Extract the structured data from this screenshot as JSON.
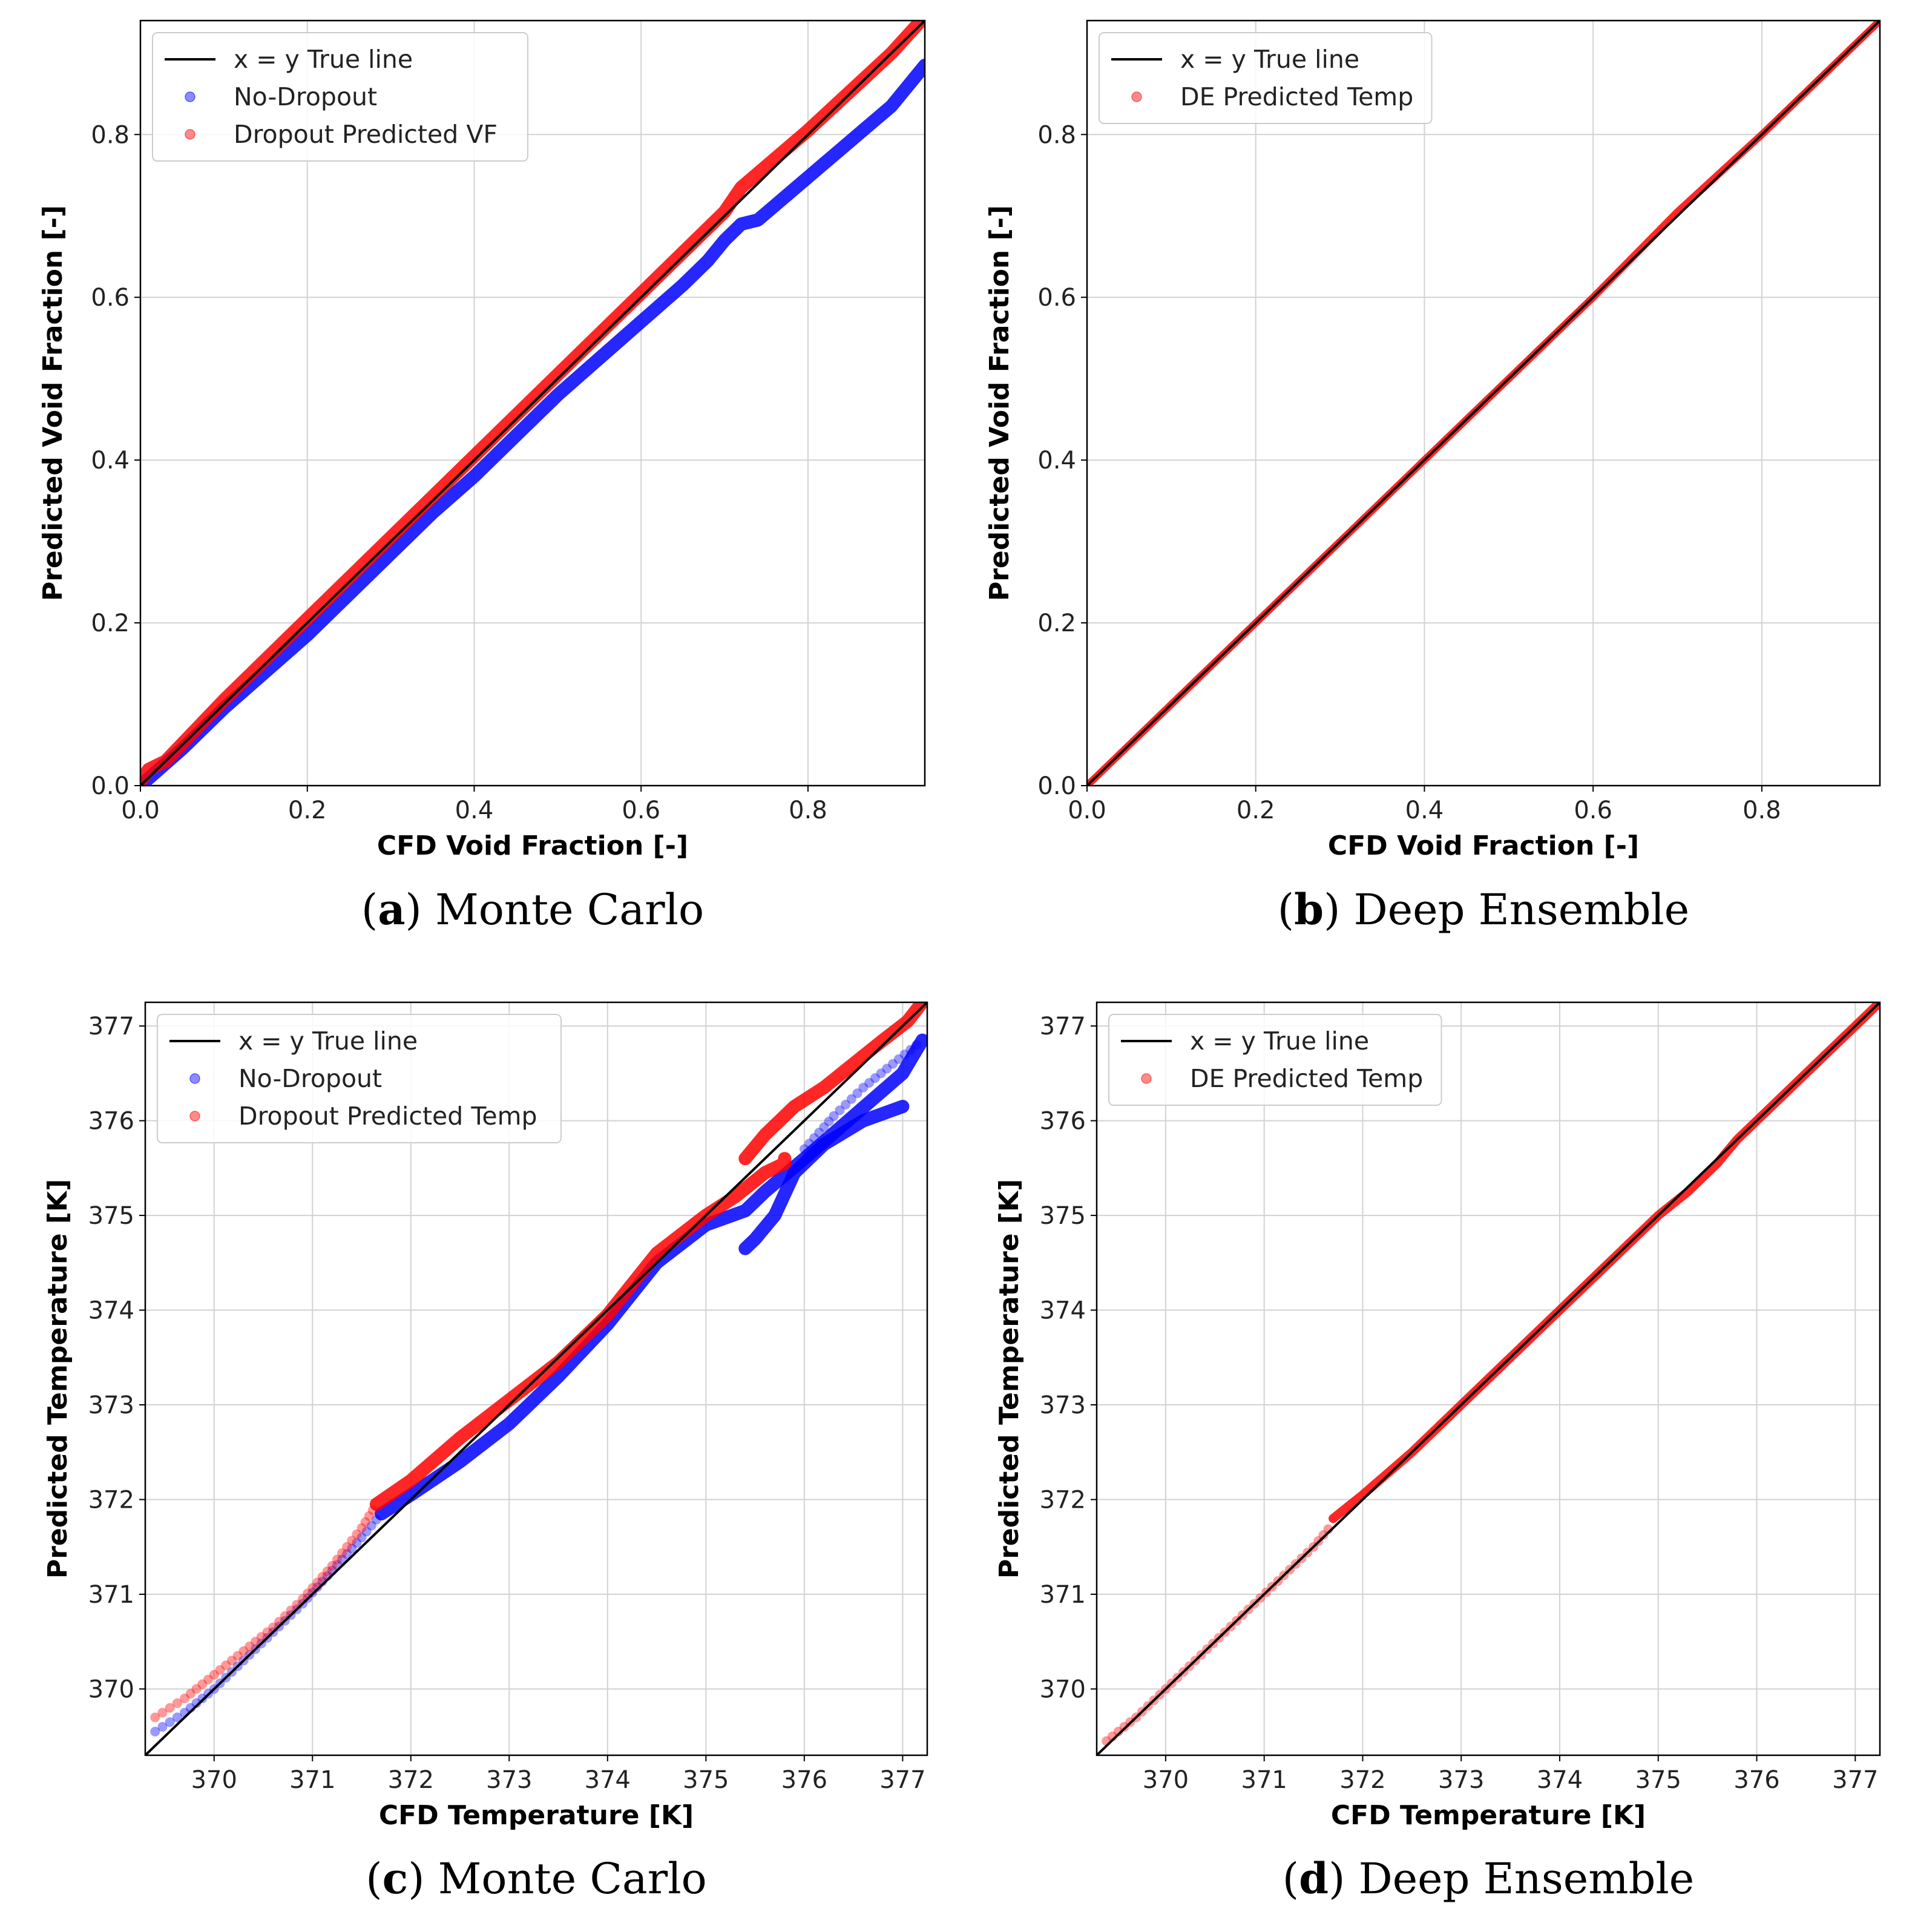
{
  "colors": {
    "true_line": "#000000",
    "dropout": "#ff0000",
    "no_dropout": "#0000ff",
    "grid": "#d2d2d2"
  },
  "chart_data": [
    {
      "id": "a",
      "type": "scatter",
      "caption_letter": "a",
      "caption_text": "Monte Carlo",
      "xlabel": "CFD Void Fraction [-]",
      "ylabel": "Predicted Void Fraction [-]",
      "xlim": [
        0,
        0.94
      ],
      "ylim": [
        0,
        0.94
      ],
      "xticks": [
        0.0,
        0.2,
        0.4,
        0.6,
        0.8
      ],
      "yticks": [
        0.0,
        0.2,
        0.4,
        0.6,
        0.8
      ],
      "tick_decimals": 1,
      "legend_position": "top-left",
      "legend": [
        "x = y True line",
        "No-Dropout",
        "Dropout Predicted VF"
      ],
      "series": [
        {
          "name": "No-Dropout",
          "color": "#0000ff",
          "style": "thick",
          "x": [
            0.0,
            0.05,
            0.1,
            0.15,
            0.2,
            0.25,
            0.3,
            0.35,
            0.4,
            0.45,
            0.5,
            0.55,
            0.6,
            0.65,
            0.68,
            0.7,
            0.72,
            0.74,
            0.78,
            0.82,
            0.86,
            0.9,
            0.94
          ],
          "y": [
            0.0,
            0.045,
            0.095,
            0.14,
            0.185,
            0.235,
            0.285,
            0.335,
            0.38,
            0.43,
            0.48,
            0.525,
            0.57,
            0.615,
            0.645,
            0.67,
            0.69,
            0.695,
            0.73,
            0.765,
            0.8,
            0.835,
            0.885
          ]
        },
        {
          "name": "Dropout Predicted VF",
          "color": "#ff0000",
          "style": "thick",
          "x": [
            0.0,
            0.01,
            0.03,
            0.1,
            0.2,
            0.3,
            0.4,
            0.5,
            0.6,
            0.7,
            0.72,
            0.8,
            0.9,
            0.94
          ],
          "y": [
            0.005,
            0.02,
            0.03,
            0.105,
            0.205,
            0.305,
            0.405,
            0.505,
            0.605,
            0.705,
            0.735,
            0.805,
            0.9,
            0.945
          ]
        }
      ]
    },
    {
      "id": "b",
      "type": "scatter",
      "caption_letter": "b",
      "caption_text": "Deep Ensemble",
      "xlabel": "CFD Void Fraction [-]",
      "ylabel": "Predicted Void Fraction [-]",
      "xlim": [
        0,
        0.94
      ],
      "ylim": [
        0,
        0.94
      ],
      "xticks": [
        0.0,
        0.2,
        0.4,
        0.6,
        0.8
      ],
      "yticks": [
        0.0,
        0.2,
        0.4,
        0.6,
        0.8
      ],
      "tick_decimals": 1,
      "legend_position": "top-left",
      "legend": [
        "x = y True line",
        "DE Predicted Temp"
      ],
      "series": [
        {
          "name": "DE Predicted Temp",
          "color": "#ff0000",
          "style": "thin",
          "x": [
            0.0,
            0.1,
            0.2,
            0.3,
            0.4,
            0.5,
            0.6,
            0.7,
            0.8,
            0.9,
            0.94
          ],
          "y": [
            0.0,
            0.1,
            0.2,
            0.3,
            0.4,
            0.5,
            0.6,
            0.705,
            0.8,
            0.9,
            0.94
          ]
        }
      ]
    },
    {
      "id": "c",
      "type": "scatter",
      "caption_letter": "c",
      "caption_text": "Monte Carlo",
      "xlabel": "CFD Temperature [K]",
      "ylabel": "Predicted Temperature [K]",
      "xlim": [
        369.3,
        377.25
      ],
      "ylim": [
        369.3,
        377.25
      ],
      "xticks": [
        370,
        371,
        372,
        373,
        374,
        375,
        376,
        377
      ],
      "yticks": [
        370,
        371,
        372,
        373,
        374,
        375,
        376,
        377
      ],
      "tick_decimals": 0,
      "legend_position": "top-left",
      "legend": [
        "x = y True line",
        "No-Dropout",
        "Dropout Predicted Temp"
      ],
      "series": [
        {
          "name": "No-Dropout",
          "color": "#0000ff",
          "style": "dots",
          "x": [
            369.4,
            369.7,
            370.0,
            370.3,
            370.6,
            370.9,
            371.2,
            371.5,
            371.7
          ],
          "y": [
            369.55,
            369.75,
            370.0,
            370.3,
            370.6,
            370.9,
            371.25,
            371.6,
            371.85
          ]
        },
        {
          "name": "No-Dropout",
          "color": "#0000ff",
          "style": "thick",
          "x": [
            371.7,
            372.0,
            372.5,
            373.0,
            373.5,
            374.0,
            374.5,
            375.0,
            375.4,
            375.6,
            376.0,
            376.5,
            377.0,
            377.2
          ],
          "y": [
            371.85,
            372.05,
            372.4,
            372.8,
            373.3,
            373.85,
            374.5,
            374.9,
            375.05,
            375.25,
            375.6,
            376.05,
            376.5,
            376.85
          ]
        },
        {
          "name": "No-Dropout",
          "color": "#0000ff",
          "style": "thick",
          "x": [
            375.4,
            375.5,
            375.7,
            375.9,
            376.2,
            376.6,
            377.0
          ],
          "y": [
            374.65,
            374.75,
            375.0,
            375.45,
            375.75,
            376.0,
            376.15
          ]
        },
        {
          "name": "No-Dropout",
          "color": "#0000ff",
          "style": "dots",
          "x": [
            376.0,
            376.3,
            376.6,
            376.9,
            377.2
          ],
          "y": [
            375.7,
            376.05,
            376.35,
            376.6,
            376.85
          ]
        },
        {
          "name": "Dropout Predicted Temp",
          "color": "#ff0000",
          "style": "dots",
          "x": [
            369.4,
            369.7,
            370.0,
            370.3,
            370.6,
            370.9,
            371.2,
            371.5,
            371.65
          ],
          "y": [
            369.7,
            369.9,
            370.15,
            370.4,
            370.65,
            370.95,
            371.3,
            371.7,
            371.95
          ]
        },
        {
          "name": "Dropout Predicted Temp",
          "color": "#ff0000",
          "style": "thick",
          "x": [
            371.65,
            372.0,
            372.5,
            373.0,
            373.5,
            374.0,
            374.5,
            375.0,
            375.3,
            375.6,
            375.8,
            375.8
          ],
          "y": [
            371.95,
            372.2,
            372.65,
            373.05,
            373.45,
            373.95,
            374.6,
            375.0,
            375.2,
            375.45,
            375.55,
            375.6
          ]
        },
        {
          "name": "Dropout Predicted Temp",
          "color": "#ff0000",
          "style": "thick",
          "x": [
            375.4,
            375.6,
            375.9,
            376.2,
            376.5,
            376.8,
            377.05,
            377.2
          ],
          "y": [
            375.6,
            375.85,
            376.15,
            376.35,
            376.6,
            376.85,
            377.05,
            377.25
          ]
        }
      ]
    },
    {
      "id": "d",
      "type": "scatter",
      "caption_letter": "d",
      "caption_text": "Deep Ensemble",
      "xlabel": "CFD Temperature [K]",
      "ylabel": "Predicted Temperature [K]",
      "xlim": [
        369.3,
        377.25
      ],
      "ylim": [
        369.3,
        377.25
      ],
      "xticks": [
        370,
        371,
        372,
        373,
        374,
        375,
        376,
        377
      ],
      "yticks": [
        370,
        371,
        372,
        373,
        374,
        375,
        376,
        377
      ],
      "tick_decimals": 0,
      "legend_position": "top-left",
      "legend": [
        "x = y True line",
        "DE Predicted Temp"
      ],
      "series": [
        {
          "name": "DE Predicted Temp",
          "color": "#ff0000",
          "style": "dots",
          "x": [
            369.4,
            369.7,
            370.0,
            370.3,
            370.6,
            370.9,
            371.2,
            371.5,
            371.7
          ],
          "y": [
            369.45,
            369.7,
            370.0,
            370.3,
            370.6,
            370.9,
            371.2,
            371.5,
            371.75
          ]
        },
        {
          "name": "DE Predicted Temp",
          "color": "#ff0000",
          "style": "medium",
          "x": [
            371.7,
            372.0,
            372.5,
            373.0,
            373.5,
            374.0,
            374.5,
            375.0,
            375.3,
            375.6,
            375.8,
            376.2,
            376.6,
            377.0,
            377.25
          ],
          "y": [
            371.8,
            372.05,
            372.5,
            373.0,
            373.5,
            374.0,
            374.5,
            375.0,
            375.25,
            375.55,
            375.8,
            376.2,
            376.6,
            377.0,
            377.25
          ]
        }
      ]
    }
  ]
}
